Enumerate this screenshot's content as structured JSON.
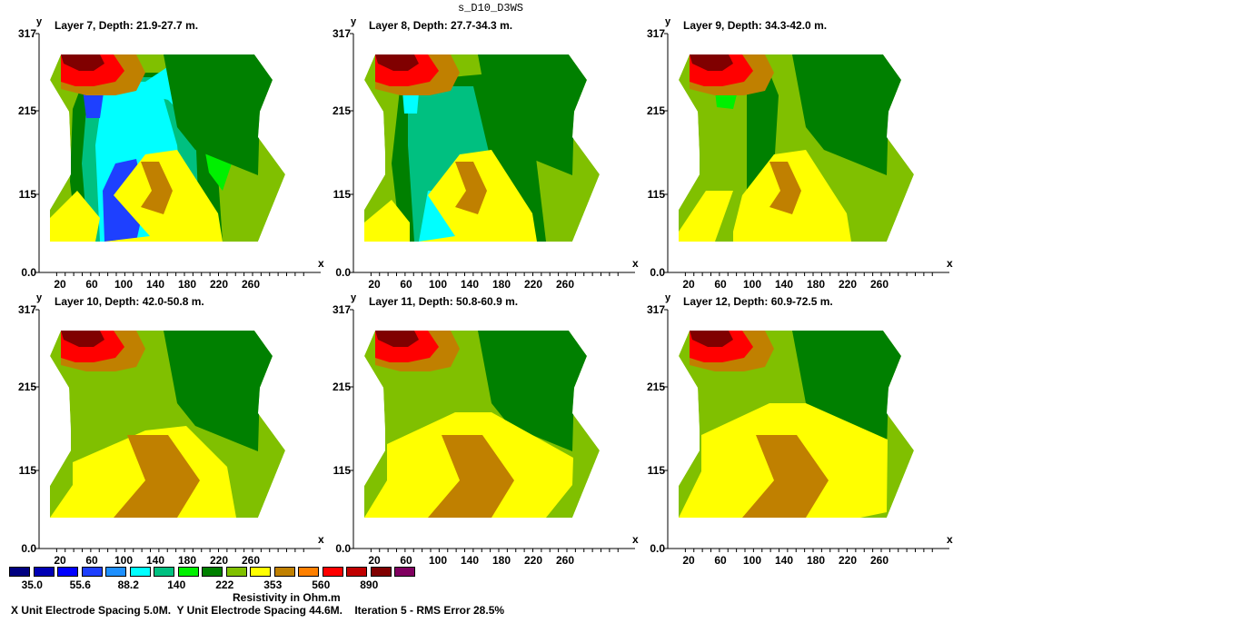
{
  "title": "s_D10_D3WS",
  "chart_data": {
    "type": "heatmap",
    "x_axis": {
      "label": "x",
      "ticks": [
        20,
        60,
        100,
        140,
        180,
        220,
        260
      ],
      "range": [
        0,
        320
      ]
    },
    "y_axis": {
      "label": "y",
      "ticks": [
        "0.0",
        "115",
        "215",
        "317"
      ],
      "range": [
        0,
        317
      ]
    },
    "panels": [
      {
        "title": "Layer 7, Depth: 21.9-27.7 m."
      },
      {
        "title": "Layer 8, Depth: 27.7-34.3 m."
      },
      {
        "title": "Layer 9, Depth: 34.3-42.0 m."
      },
      {
        "title": "Layer 10, Depth: 42.0-50.8 m."
      },
      {
        "title": "Layer 11, Depth: 50.8-60.9 m."
      },
      {
        "title": "Layer 12, Depth: 60.9-72.5 m."
      }
    ],
    "legend": {
      "title": "Resistivity in Ohm.m",
      "colors": [
        "#000080",
        "#0000b4",
        "#0000ff",
        "#1e40ff",
        "#1e90ff",
        "#00ffff",
        "#00c080",
        "#00f000",
        "#008000",
        "#80c000",
        "#ffff00",
        "#c08000",
        "#ff8000",
        "#ff0000",
        "#c00000",
        "#800000",
        "#800060"
      ],
      "labels": [
        {
          "text": "35.0",
          "index": 0.5
        },
        {
          "text": "55.6",
          "index": 2.5
        },
        {
          "text": "88.2",
          "index": 4.5
        },
        {
          "text": "140",
          "index": 6.5
        },
        {
          "text": "222",
          "index": 8.5
        },
        {
          "text": "353",
          "index": 10.5
        },
        {
          "text": "560",
          "index": 12.5
        },
        {
          "text": "890",
          "index": 14.5
        }
      ]
    }
  },
  "footer": "X Unit Electrode Spacing 5.0M.  Y Unit Electrode Spacing 44.6M.    Iteration 5 - RMS Error 28.5%"
}
